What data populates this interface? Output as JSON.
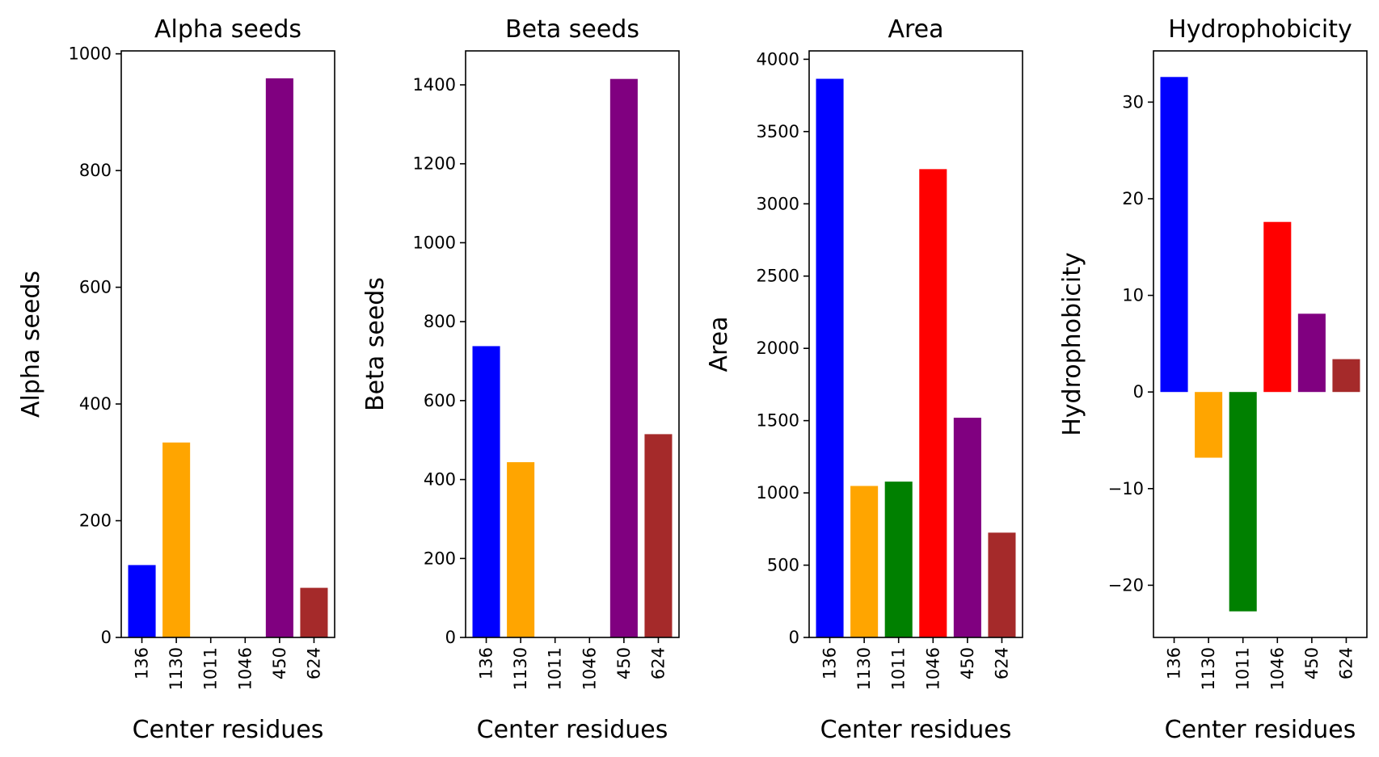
{
  "chart_data": [
    {
      "type": "bar",
      "title": "Alpha seeds",
      "xlabel": "Center residues",
      "ylabel": "Alpha seeds",
      "categories": [
        "136",
        "1130",
        "1011",
        "1046",
        "450",
        "624"
      ],
      "values": [
        124,
        334,
        0,
        0,
        958,
        85
      ],
      "colors": [
        "#0000ff",
        "#ffa500",
        "#008000",
        "#ff0000",
        "#800080",
        "#a52a2a"
      ],
      "ylim": [
        0,
        1005
      ],
      "yticks": [
        "0",
        "200",
        "400",
        "600",
        "800",
        "1000"
      ],
      "grid": false,
      "legend": "none"
    },
    {
      "type": "bar",
      "title": "Beta seeds",
      "xlabel": "Center residues",
      "ylabel": "Beta seeds",
      "categories": [
        "136",
        "1130",
        "1011",
        "1046",
        "450",
        "624"
      ],
      "values": [
        738,
        444,
        0,
        0,
        1415,
        515
      ],
      "colors": [
        "#0000ff",
        "#ffa500",
        "#008000",
        "#ff0000",
        "#800080",
        "#a52a2a"
      ],
      "ylim": [
        0,
        1486
      ],
      "yticks": [
        "0",
        "200",
        "400",
        "600",
        "800",
        "1000",
        "1200",
        "1400"
      ],
      "grid": false,
      "legend": "none"
    },
    {
      "type": "bar",
      "title": "Area",
      "xlabel": "Center residues",
      "ylabel": "Area",
      "categories": [
        "136",
        "1130",
        "1011",
        "1046",
        "450",
        "624"
      ],
      "values": [
        3865,
        1048,
        1078,
        3240,
        1520,
        725
      ],
      "colors": [
        "#0000ff",
        "#ffa500",
        "#008000",
        "#ff0000",
        "#800080",
        "#a52a2a"
      ],
      "ylim": [
        0,
        4058
      ],
      "yticks": [
        "0",
        "500",
        "1000",
        "1500",
        "2000",
        "2500",
        "3000",
        "3500",
        "4000"
      ],
      "grid": false,
      "legend": "none"
    },
    {
      "type": "bar",
      "title": "Hydrophobicity",
      "xlabel": "Center residues",
      "ylabel": "Hydrophobicity",
      "categories": [
        "136",
        "1130",
        "1011",
        "1046",
        "450",
        "624"
      ],
      "values": [
        32.6,
        -6.8,
        -22.7,
        17.6,
        8.1,
        3.4
      ],
      "colors": [
        "#0000ff",
        "#ffa500",
        "#008000",
        "#ff0000",
        "#800080",
        "#a52a2a"
      ],
      "ylim": [
        -25.4,
        35.3
      ],
      "yticks": [
        "-20",
        "-10",
        "0",
        "10",
        "20",
        "30"
      ],
      "grid": false,
      "legend": "none"
    }
  ]
}
